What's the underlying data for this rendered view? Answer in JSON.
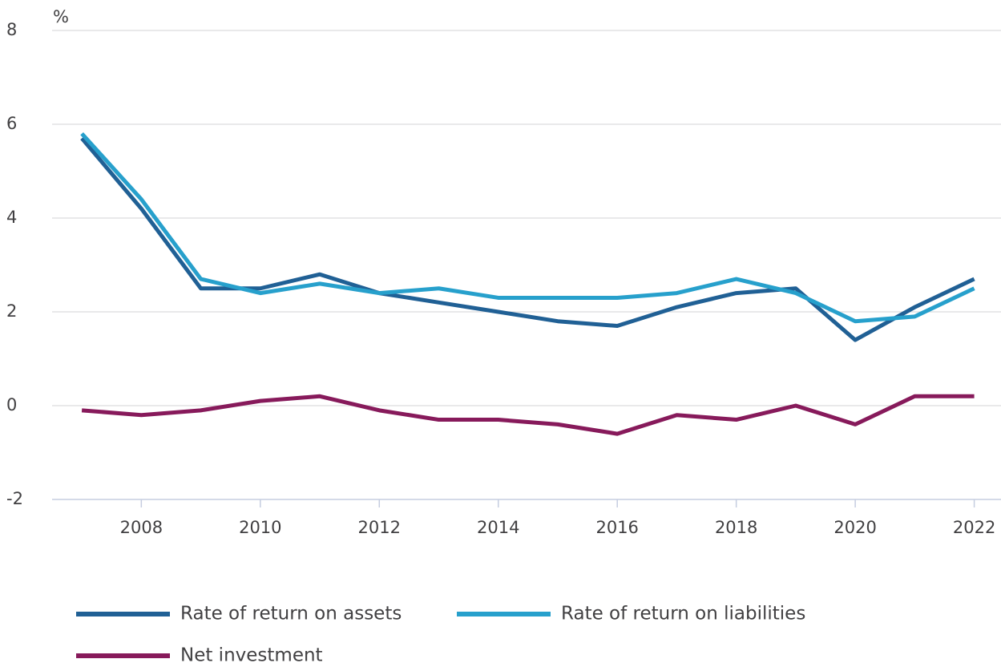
{
  "chart_data": {
    "type": "line",
    "y_unit_label": "%",
    "x": [
      2007,
      2008,
      2009,
      2010,
      2011,
      2012,
      2013,
      2014,
      2015,
      2016,
      2017,
      2018,
      2019,
      2020,
      2021,
      2022
    ],
    "series": [
      {
        "name": "Rate of return on assets",
        "color": "#206095",
        "values": [
          5.7,
          4.2,
          2.5,
          2.5,
          2.8,
          2.4,
          2.2,
          2.0,
          1.8,
          1.7,
          2.1,
          2.4,
          2.5,
          1.4,
          2.1,
          2.7
        ]
      },
      {
        "name": "Rate of return on liabilities",
        "color": "#27a0cc",
        "values": [
          5.8,
          4.4,
          2.7,
          2.4,
          2.6,
          2.4,
          2.5,
          2.3,
          2.3,
          2.3,
          2.4,
          2.7,
          2.4,
          1.8,
          1.9,
          2.5
        ]
      },
      {
        "name": "Net investment",
        "color": "#871a5b",
        "values": [
          -0.1,
          -0.2,
          -0.1,
          0.1,
          0.2,
          -0.1,
          -0.3,
          -0.3,
          -0.4,
          -0.6,
          -0.2,
          -0.3,
          0.0,
          -0.4,
          0.2,
          0.2
        ]
      }
    ],
    "xlim": [
      2006.5,
      2022.45
    ],
    "xticks": [
      2008,
      2010,
      2012,
      2014,
      2016,
      2018,
      2020,
      2022
    ],
    "ylim": [
      -2,
      8
    ],
    "yticks": [
      -2,
      0,
      2,
      4,
      6,
      8
    ],
    "grid": true,
    "legend": "bottom"
  }
}
